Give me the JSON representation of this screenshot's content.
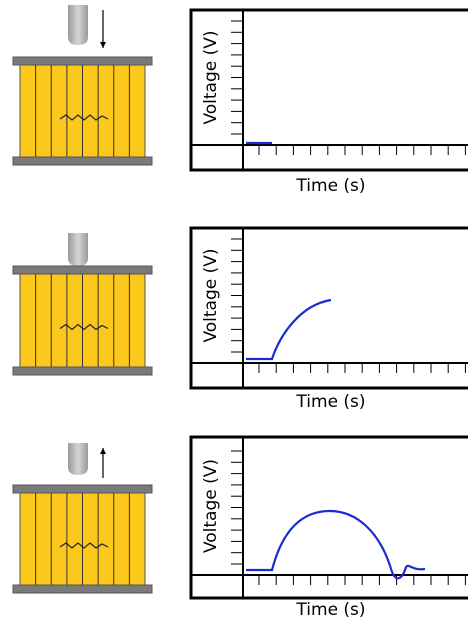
{
  "panels": [
    {
      "y_label": "Voltage (V)",
      "x_label": "Time (s)"
    },
    {
      "y_label": "Voltage (V)",
      "x_label": "Time (s)"
    },
    {
      "y_label": "Voltage (V)",
      "x_label": "Time (s)"
    }
  ]
}
